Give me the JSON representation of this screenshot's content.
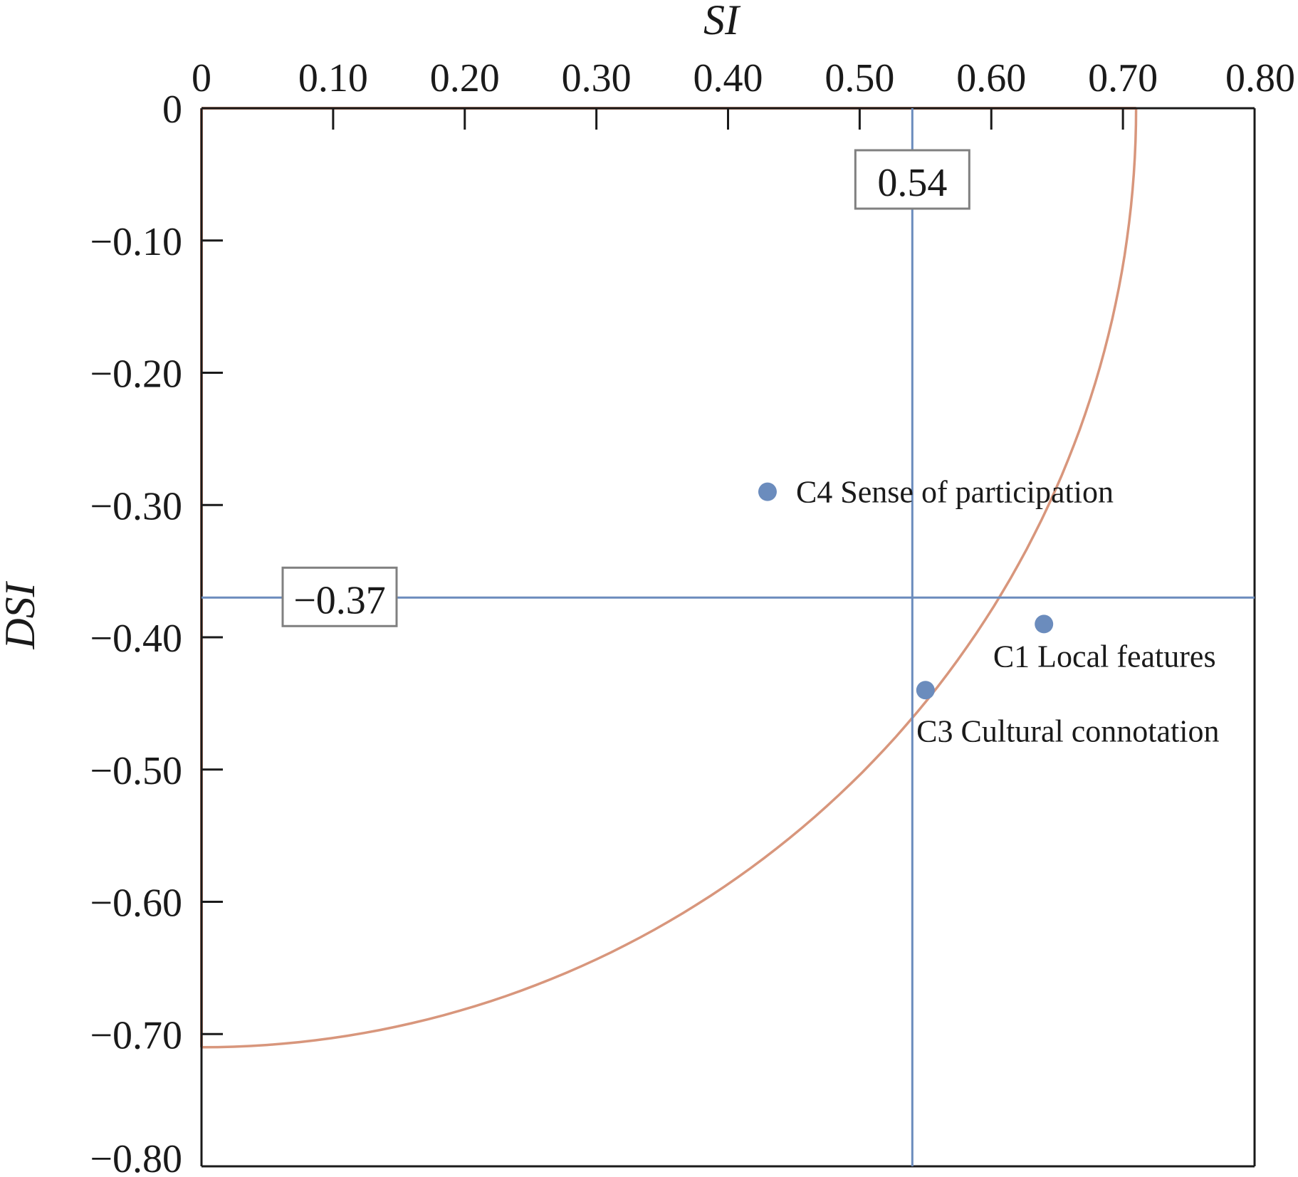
{
  "chart_data": {
    "type": "scatter",
    "title": "",
    "xlabel": "SI",
    "ylabel": "DSI",
    "xlim": [
      0,
      0.8
    ],
    "ylim": [
      -0.8,
      0
    ],
    "x_axis_position": "top",
    "x_ticks": [
      "0",
      "0.10",
      "0.20",
      "0.30",
      "0.40",
      "0.50",
      "0.60",
      "0.70",
      "0.80"
    ],
    "x_tick_values": [
      0,
      0.1,
      0.2,
      0.3,
      0.4,
      0.5,
      0.6,
      0.7,
      0.8
    ],
    "y_ticks": [
      "0",
      "−0.10",
      "−0.20",
      "−0.30",
      "−0.40",
      "−0.50",
      "−0.60",
      "−0.70",
      "−0.80"
    ],
    "y_tick_values": [
      0,
      -0.1,
      -0.2,
      -0.3,
      -0.4,
      -0.5,
      -0.6,
      -0.7,
      -0.8
    ],
    "grid": false,
    "points": [
      {
        "label": "C4 Sense of participation",
        "x": 0.43,
        "y": -0.29
      },
      {
        "label": "C1 Local features",
        "x": 0.64,
        "y": -0.39
      },
      {
        "label": "C3 Cultural connotation",
        "x": 0.55,
        "y": -0.44
      }
    ],
    "reference_lines": {
      "vertical": {
        "x": 0.54,
        "label": "0.54"
      },
      "horizontal": {
        "y": -0.37,
        "label": "−0.37"
      }
    },
    "curve": {
      "shape": "quarter-circle",
      "center": [
        0,
        0
      ],
      "radius": 0.71
    },
    "colors": {
      "points": "#6b8cbd",
      "reference_lines": "#6b8cbd",
      "curve": "#d8967c",
      "axis": "#1a1a1a",
      "label_box": "#808080"
    }
  }
}
